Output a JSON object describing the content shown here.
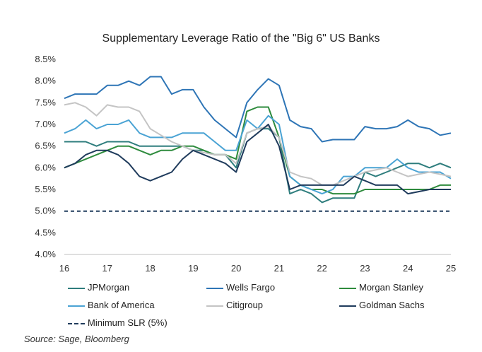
{
  "chart_data": {
    "type": "line",
    "title": "Supplementary Leverage Ratio of the \"Big 6\" US Banks",
    "xlabel": "",
    "ylabel": "",
    "xlim": [
      16,
      25
    ],
    "ylim": [
      4.0,
      8.5
    ],
    "x_ticks": [
      "16",
      "17",
      "18",
      "19",
      "20",
      "21",
      "22",
      "23",
      "24",
      "25"
    ],
    "y_ticks": [
      "4.0%",
      "4.5%",
      "5.0%",
      "5.5%",
      "6.0%",
      "6.5%",
      "7.0%",
      "7.5%",
      "8.0%",
      "8.5%"
    ],
    "series": [
      {
        "name": "JPMorgan",
        "color": "#2e7d7d",
        "dash": false,
        "x": [
          16,
          16.25,
          16.5,
          16.75,
          17,
          17.25,
          17.5,
          17.75,
          18,
          18.25,
          18.5,
          18.75,
          19,
          19.25,
          19.5,
          19.75,
          20,
          20.25,
          20.5,
          20.75,
          21,
          21.25,
          21.5,
          21.75,
          22,
          22.25,
          22.5,
          22.75,
          23,
          23.25,
          23.5,
          23.75,
          24,
          24.25,
          24.5,
          24.75,
          25
        ],
        "y": [
          6.6,
          6.6,
          6.6,
          6.5,
          6.6,
          6.6,
          6.6,
          6.5,
          6.5,
          6.5,
          6.5,
          6.5,
          6.4,
          6.4,
          6.3,
          6.3,
          6.0,
          6.8,
          6.9,
          6.9,
          6.7,
          5.4,
          5.5,
          5.4,
          5.2,
          5.3,
          5.3,
          5.3,
          5.9,
          5.8,
          5.9,
          6.0,
          6.1,
          6.1,
          6.0,
          6.1,
          6.0
        ]
      },
      {
        "name": "Wells Fargo",
        "color": "#2e75b6",
        "dash": false,
        "x": [
          16,
          16.25,
          16.5,
          16.75,
          17,
          17.25,
          17.5,
          17.75,
          18,
          18.25,
          18.5,
          18.75,
          19,
          19.25,
          19.5,
          19.75,
          20,
          20.25,
          20.5,
          20.75,
          21,
          21.25,
          21.5,
          21.75,
          22,
          22.25,
          22.5,
          22.75,
          23,
          23.25,
          23.5,
          23.75,
          24,
          24.25,
          24.5,
          24.75,
          25
        ],
        "y": [
          7.6,
          7.7,
          7.7,
          7.7,
          7.9,
          7.9,
          8.0,
          7.9,
          8.1,
          8.1,
          7.7,
          7.8,
          7.8,
          7.4,
          7.1,
          6.9,
          6.7,
          7.5,
          7.8,
          8.05,
          7.9,
          7.1,
          6.95,
          6.9,
          6.6,
          6.65,
          6.65,
          6.65,
          6.95,
          6.9,
          6.9,
          6.95,
          7.1,
          6.95,
          6.9,
          6.75,
          6.8
        ]
      },
      {
        "name": "Morgan Stanley",
        "color": "#2e8b3d",
        "dash": false,
        "x": [
          16,
          16.25,
          16.5,
          16.75,
          17,
          17.25,
          17.5,
          17.75,
          18,
          18.25,
          18.5,
          18.75,
          19,
          19.25,
          19.5,
          19.75,
          20,
          20.25,
          20.5,
          20.75,
          21,
          21.25,
          21.5,
          21.75,
          22,
          22.25,
          22.5,
          22.75,
          23,
          23.25,
          23.5,
          23.75,
          24,
          24.25,
          24.5,
          24.75,
          25
        ],
        "y": [
          6.0,
          6.1,
          6.2,
          6.3,
          6.4,
          6.5,
          6.5,
          6.4,
          6.3,
          6.4,
          6.4,
          6.5,
          6.5,
          6.4,
          6.3,
          6.3,
          6.2,
          7.3,
          7.4,
          7.4,
          6.7,
          5.8,
          5.6,
          5.5,
          5.5,
          5.4,
          5.4,
          5.4,
          5.5,
          5.5,
          5.5,
          5.5,
          5.5,
          5.5,
          5.5,
          5.6,
          5.6
        ]
      },
      {
        "name": "Bank of America",
        "color": "#4aa3d4",
        "dash": false,
        "x": [
          16,
          16.25,
          16.5,
          16.75,
          17,
          17.25,
          17.5,
          17.75,
          18,
          18.25,
          18.5,
          18.75,
          19,
          19.25,
          19.5,
          19.75,
          20,
          20.25,
          20.5,
          20.75,
          21,
          21.25,
          21.5,
          21.75,
          22,
          22.25,
          22.5,
          22.75,
          23,
          23.25,
          23.5,
          23.75,
          24,
          24.25,
          24.5,
          24.75,
          25
        ],
        "y": [
          6.8,
          6.9,
          7.1,
          6.9,
          7.0,
          7.0,
          7.1,
          6.8,
          6.7,
          6.7,
          6.7,
          6.8,
          6.8,
          6.8,
          6.6,
          6.4,
          6.4,
          7.1,
          6.9,
          7.2,
          7.0,
          5.8,
          5.6,
          5.5,
          5.4,
          5.5,
          5.8,
          5.8,
          6.0,
          6.0,
          6.0,
          6.2,
          6.0,
          5.9,
          5.9,
          5.9,
          5.75
        ]
      },
      {
        "name": "Citigroup",
        "color": "#c4c4c4",
        "dash": false,
        "x": [
          16,
          16.25,
          16.5,
          16.75,
          17,
          17.25,
          17.5,
          17.75,
          18,
          18.25,
          18.5,
          18.75,
          19,
          19.25,
          19.5,
          19.75,
          20,
          20.25,
          20.5,
          20.75,
          21,
          21.25,
          21.5,
          21.75,
          22,
          22.25,
          22.5,
          22.75,
          23,
          23.25,
          23.5,
          23.75,
          24,
          24.25,
          24.5,
          24.75,
          25
        ],
        "y": [
          7.45,
          7.5,
          7.4,
          7.2,
          7.45,
          7.4,
          7.4,
          7.3,
          6.9,
          6.75,
          6.6,
          6.5,
          6.4,
          6.35,
          6.3,
          6.3,
          6.1,
          6.8,
          6.9,
          6.95,
          6.7,
          5.9,
          5.8,
          5.75,
          5.6,
          5.6,
          5.7,
          5.8,
          5.9,
          5.95,
          6.0,
          5.9,
          5.8,
          5.85,
          5.9,
          5.85,
          5.8
        ]
      },
      {
        "name": "Goldman Sachs",
        "color": "#1f3b5c",
        "dash": false,
        "x": [
          16,
          16.25,
          16.5,
          16.75,
          17,
          17.25,
          17.5,
          17.75,
          18,
          18.25,
          18.5,
          18.75,
          19,
          19.25,
          19.5,
          19.75,
          20,
          20.25,
          20.5,
          20.75,
          21,
          21.25,
          21.5,
          21.75,
          22,
          22.25,
          22.5,
          22.75,
          23,
          23.25,
          23.5,
          23.75,
          24,
          24.25,
          24.5,
          24.75,
          25
        ],
        "y": [
          6.0,
          6.1,
          6.3,
          6.4,
          6.4,
          6.3,
          6.1,
          5.8,
          5.7,
          5.8,
          5.9,
          6.2,
          6.4,
          6.3,
          6.2,
          6.1,
          5.9,
          6.6,
          6.8,
          7.0,
          6.5,
          5.5,
          5.6,
          5.6,
          5.6,
          5.6,
          5.6,
          5.8,
          5.7,
          5.6,
          5.6,
          5.6,
          5.4,
          5.45,
          5.5,
          5.5,
          5.5
        ]
      },
      {
        "name": "Minimum SLR (5%)",
        "color": "#1f3b5c",
        "dash": true,
        "x": [
          16,
          25
        ],
        "y": [
          5.0,
          5.0
        ]
      }
    ],
    "legend_position": "bottom",
    "grid": false
  },
  "source_note": "Source: Sage, Bloomberg"
}
